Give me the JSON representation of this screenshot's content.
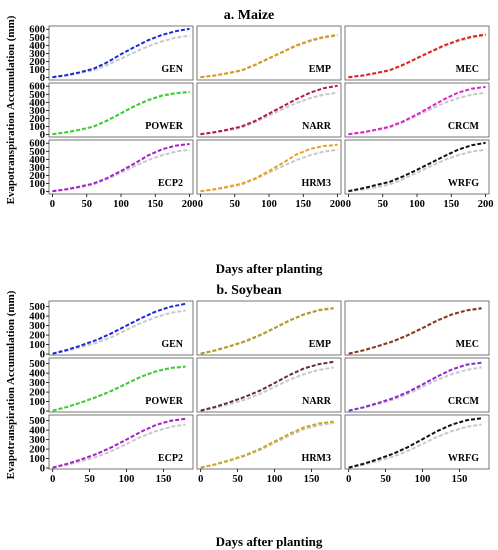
{
  "ylabel_text": "Evapotranspiration Accumulation (mm)",
  "xlabel_text": "Days after planting",
  "colors": {
    "reference": "#c8c8c8",
    "GEN": "#1a2ad8",
    "EMP": "#d79a1e",
    "MEC": "#e6201e",
    "POWER": "#3ad12e",
    "NARR": "#b21a4e",
    "CRCM": "#e020d0",
    "ECP2": "#a71ecb",
    "HRM3": "#f0a020",
    "WRFG": "#111111",
    "soy_EMP": "#b59a1c",
    "soy_MEC": "#8a3a1a",
    "soy_NARR": "#6a2a3a",
    "soy_CRCM": "#8a2ad0",
    "soy_HRM3": "#c8a81e"
  },
  "chart_data": [
    {
      "type": "line",
      "title": "a. Maize",
      "xlabel": "Days after planting",
      "ylabel": "Evapotranspiration Accumulation (mm)",
      "xlim": [
        -5,
        205
      ],
      "ylim": [
        -30,
        640
      ],
      "xticks": [
        0,
        50,
        100,
        150,
        200
      ],
      "yticks": [
        0,
        100,
        200,
        300,
        400,
        500,
        600
      ],
      "x": [
        0,
        20,
        40,
        60,
        80,
        100,
        120,
        140,
        160,
        180,
        200
      ],
      "panels": [
        {
          "label": "GEN",
          "color_key": "GEN",
          "values": [
            5,
            30,
            65,
            110,
            190,
            290,
            380,
            465,
            530,
            575,
            605
          ],
          "reference": [
            5,
            25,
            55,
            90,
            155,
            235,
            315,
            390,
            450,
            495,
            520
          ]
        },
        {
          "label": "EMP",
          "color_key": "EMP",
          "values": [
            5,
            25,
            55,
            90,
            160,
            240,
            320,
            400,
            460,
            505,
            530
          ],
          "reference": [
            5,
            24,
            52,
            88,
            155,
            235,
            315,
            392,
            452,
            495,
            520
          ]
        },
        {
          "label": "MEC",
          "color_key": "MEC",
          "values": [
            5,
            25,
            56,
            92,
            160,
            242,
            322,
            400,
            462,
            508,
            535
          ],
          "reference": [
            5,
            24,
            53,
            88,
            155,
            236,
            315,
            392,
            452,
            496,
            522
          ]
        },
        {
          "label": "POWER",
          "color_key": "POWER",
          "values": [
            5,
            28,
            60,
            100,
            175,
            265,
            355,
            430,
            485,
            515,
            530
          ],
          "reference": [
            5,
            27,
            58,
            98,
            172,
            262,
            350,
            425,
            480,
            510,
            525
          ]
        },
        {
          "label": "NARR",
          "color_key": "NARR",
          "values": [
            5,
            28,
            62,
            100,
            170,
            260,
            350,
            440,
            520,
            575,
            605
          ],
          "reference": [
            5,
            24,
            53,
            88,
            155,
            236,
            315,
            392,
            452,
            496,
            520
          ]
        },
        {
          "label": "CRCM",
          "color_key": "CRCM",
          "values": [
            5,
            27,
            60,
            98,
            165,
            250,
            345,
            440,
            520,
            570,
            590
          ],
          "reference": [
            5,
            24,
            53,
            88,
            155,
            236,
            315,
            392,
            452,
            496,
            520
          ]
        },
        {
          "label": "ECP2",
          "color_key": "ECP2",
          "values": [
            5,
            28,
            62,
            100,
            168,
            255,
            350,
            450,
            525,
            570,
            590
          ],
          "reference": [
            5,
            24,
            53,
            88,
            155,
            236,
            315,
            392,
            452,
            496,
            520
          ]
        },
        {
          "label": "HRM3",
          "color_key": "HRM3",
          "values": [
            5,
            28,
            62,
            98,
            165,
            255,
            355,
            460,
            530,
            565,
            580
          ],
          "reference": [
            5,
            24,
            53,
            88,
            155,
            236,
            315,
            392,
            452,
            496,
            520
          ]
        },
        {
          "label": "WRFG",
          "color_key": "WRFG",
          "values": [
            5,
            40,
            80,
            120,
            190,
            270,
            355,
            440,
            520,
            575,
            605
          ],
          "reference": [
            5,
            24,
            53,
            88,
            155,
            236,
            315,
            392,
            452,
            496,
            520
          ]
        }
      ]
    },
    {
      "type": "line",
      "title": "b. Soybean",
      "xlabel": "Days after planting",
      "ylabel": "Evapotranspiration Accumulation (mm)",
      "xlim": [
        -5,
        190
      ],
      "ylim": [
        -10,
        560
      ],
      "xticks": [
        0,
        50,
        100,
        150
      ],
      "yticks": [
        0,
        100,
        200,
        300,
        400,
        500
      ],
      "x": [
        0,
        20,
        40,
        60,
        80,
        100,
        120,
        140,
        160,
        180
      ],
      "panels": [
        {
          "label": "GEN",
          "color_key": "GEN",
          "values": [
            5,
            45,
            95,
            150,
            220,
            300,
            380,
            450,
            500,
            530
          ],
          "reference": [
            5,
            35,
            75,
            120,
            180,
            255,
            330,
            390,
            435,
            460
          ]
        },
        {
          "label": "EMP",
          "color_key": "soy_EMP",
          "values": [
            5,
            40,
            85,
            135,
            200,
            275,
            355,
            420,
            465,
            485
          ],
          "reference": [
            5,
            38,
            82,
            130,
            195,
            270,
            350,
            415,
            460,
            480
          ]
        },
        {
          "label": "MEC",
          "color_key": "soy_MEC",
          "values": [
            5,
            40,
            85,
            135,
            200,
            275,
            355,
            420,
            462,
            485
          ],
          "reference": [
            5,
            38,
            82,
            130,
            195,
            270,
            350,
            415,
            458,
            478
          ]
        },
        {
          "label": "POWER",
          "color_key": "POWER",
          "values": [
            5,
            45,
            95,
            150,
            215,
            290,
            365,
            420,
            455,
            470
          ],
          "reference": [
            5,
            44,
            93,
            148,
            212,
            288,
            362,
            418,
            452,
            468
          ]
        },
        {
          "label": "NARR",
          "color_key": "soy_NARR",
          "values": [
            5,
            45,
            95,
            150,
            215,
            295,
            380,
            450,
            495,
            520
          ],
          "reference": [
            5,
            35,
            75,
            120,
            180,
            255,
            330,
            390,
            435,
            460
          ]
        },
        {
          "label": "CRCM",
          "color_key": "soy_CRCM",
          "values": [
            5,
            40,
            85,
            135,
            200,
            280,
            365,
            440,
            490,
            510
          ],
          "reference": [
            5,
            35,
            75,
            120,
            180,
            255,
            330,
            390,
            435,
            460
          ]
        },
        {
          "label": "ECP2",
          "color_key": "ECP2",
          "values": [
            5,
            45,
            95,
            150,
            220,
            300,
            385,
            455,
            500,
            520
          ],
          "reference": [
            5,
            35,
            75,
            120,
            180,
            255,
            330,
            390,
            435,
            460
          ]
        },
        {
          "label": "HRM3",
          "color_key": "soy_HRM3",
          "values": [
            5,
            40,
            85,
            135,
            200,
            280,
            360,
            430,
            470,
            490
          ],
          "reference": [
            5,
            38,
            80,
            128,
            190,
            265,
            342,
            410,
            452,
            475
          ]
        },
        {
          "label": "WRFG",
          "color_key": "WRFG",
          "values": [
            5,
            45,
            95,
            150,
            220,
            305,
            390,
            460,
            505,
            525
          ],
          "reference": [
            5,
            35,
            75,
            120,
            180,
            255,
            330,
            390,
            435,
            460
          ]
        }
      ]
    }
  ]
}
